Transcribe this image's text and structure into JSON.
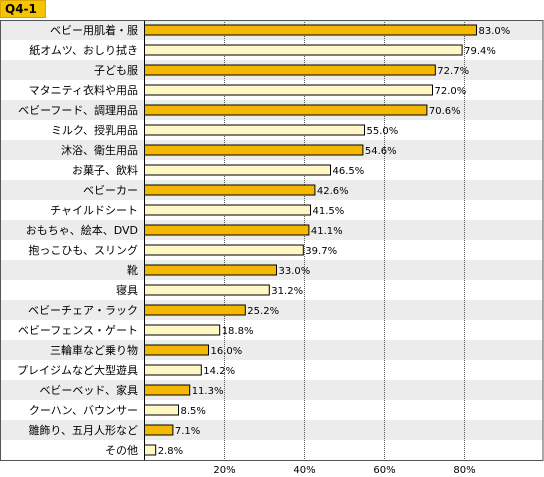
{
  "question_label": "Q4-1",
  "chart_data": {
    "type": "bar",
    "orientation": "horizontal",
    "title": "",
    "xlabel": "",
    "ylabel": "",
    "xlim": [
      0,
      100
    ],
    "xticks": [
      20,
      40,
      60,
      80
    ],
    "xtick_labels": [
      "20%",
      "40%",
      "60%",
      "80%"
    ],
    "grid": true,
    "legend": "none",
    "colors": {
      "highlight_fill": "#f5b800",
      "light_fill": "#fff8c4",
      "bar_border": "#000000",
      "row_band": "#ececec",
      "grid": "#555555"
    },
    "categories": [
      "ベビー用肌着・服",
      "紙オムツ、おしり拭き",
      "子ども服",
      "マタニティ衣料や用品",
      "ベビーフード、調理用品",
      "ミルク、授乳用品",
      "沐浴、衛生用品",
      "お菓子、飲料",
      "ベビーカー",
      "チャイルドシート",
      "おもちゃ、絵本、DVD",
      "抱っこひも、スリング",
      "靴",
      "寝具",
      "ベビーチェア・ラック",
      "ベビーフェンス・ゲート",
      "三輪車など乗り物",
      "プレイジムなど大型遊具",
      "ベビーベッド、家具",
      "クーハン、バウンサー",
      "雛飾り、五月人形など",
      "その他"
    ],
    "values": [
      83.0,
      79.4,
      72.7,
      72.0,
      70.6,
      55.0,
      54.6,
      46.5,
      42.6,
      41.5,
      41.1,
      39.7,
      33.0,
      31.2,
      25.2,
      18.8,
      16.0,
      14.2,
      11.3,
      8.5,
      7.1,
      2.8
    ],
    "data_labels": [
      "83.0%",
      "79.4%",
      "72.7%",
      "72.0%",
      "70.6%",
      "55.0%",
      "54.6%",
      "46.5%",
      "42.6%",
      "41.5%",
      "41.1%",
      "39.7%",
      "33.0%",
      "31.2%",
      "25.2%",
      "18.8%",
      "16.0%",
      "14.2%",
      "11.3%",
      "8.5%",
      "7.1%",
      "2.8%"
    ],
    "highlighted": [
      true,
      false,
      true,
      false,
      true,
      false,
      true,
      false,
      true,
      false,
      true,
      false,
      true,
      false,
      true,
      false,
      true,
      false,
      true,
      false,
      true,
      false
    ]
  }
}
